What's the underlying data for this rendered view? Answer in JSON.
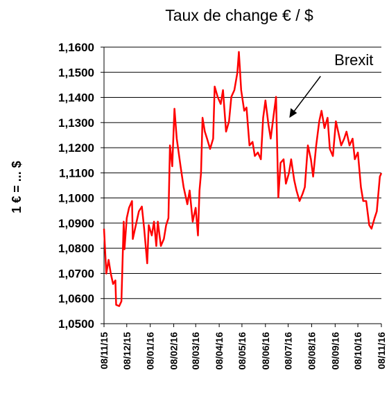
{
  "chart_data": {
    "type": "line",
    "title": "Taux de change € / $",
    "y_label": "1 € = ... $",
    "annotation": "Brexit",
    "annotation_x": "2016-06-24",
    "grid": true,
    "xlim": [
      "2015-11-08",
      "2016-11-08"
    ],
    "ylim": [
      1.05,
      1.16
    ],
    "yticks": [
      {
        "value": 1.05,
        "label": "1,0500"
      },
      {
        "value": 1.06,
        "label": "1,0600"
      },
      {
        "value": 1.07,
        "label": "1,0700"
      },
      {
        "value": 1.08,
        "label": "1,0800"
      },
      {
        "value": 1.09,
        "label": "1,0900"
      },
      {
        "value": 1.1,
        "label": "1,1000"
      },
      {
        "value": 1.11,
        "label": "1,1100"
      },
      {
        "value": 1.12,
        "label": "1,1200"
      },
      {
        "value": 1.13,
        "label": "1,1300"
      },
      {
        "value": 1.14,
        "label": "1,1400"
      },
      {
        "value": 1.15,
        "label": "1,1500"
      },
      {
        "value": 1.16,
        "label": "1,1600"
      }
    ],
    "xticks": [
      {
        "value": "2015-11-08",
        "label": "08/11/15"
      },
      {
        "value": "2015-12-08",
        "label": "08/12/15"
      },
      {
        "value": "2016-01-08",
        "label": "08/01/16"
      },
      {
        "value": "2016-02-08",
        "label": "08/02/16"
      },
      {
        "value": "2016-03-08",
        "label": "08/03/16"
      },
      {
        "value": "2016-04-08",
        "label": "08/04/16"
      },
      {
        "value": "2016-05-08",
        "label": "08/05/16"
      },
      {
        "value": "2016-06-08",
        "label": "08/06/16"
      },
      {
        "value": "2016-07-08",
        "label": "08/07/16"
      },
      {
        "value": "2016-08-08",
        "label": "08/08/16"
      },
      {
        "value": "2016-09-08",
        "label": "08/09/16"
      },
      {
        "value": "2016-10-08",
        "label": "08/10/16"
      },
      {
        "value": "2016-11-08",
        "label": "08/11/16"
      }
    ],
    "x": [
      "2015-11-08",
      "2015-11-11",
      "2015-11-14",
      "2015-11-17",
      "2015-11-20",
      "2015-11-23",
      "2015-11-24",
      "2015-11-28",
      "2015-12-01",
      "2015-12-04",
      "2015-12-05",
      "2015-12-08",
      "2015-12-11",
      "2015-12-15",
      "2015-12-16",
      "2015-12-20",
      "2015-12-24",
      "2015-12-28",
      "2015-12-31",
      "2016-01-04",
      "2016-01-06",
      "2016-01-10",
      "2016-01-13",
      "2016-01-16",
      "2016-01-18",
      "2016-01-22",
      "2016-01-26",
      "2016-01-29",
      "2016-02-01",
      "2016-02-03",
      "2016-02-06",
      "2016-02-09",
      "2016-02-12",
      "2016-02-17",
      "2016-02-21",
      "2016-02-26",
      "2016-02-29",
      "2016-03-04",
      "2016-03-08",
      "2016-03-11",
      "2016-03-13",
      "2016-03-15",
      "2016-03-17",
      "2016-03-20",
      "2016-03-23",
      "2016-03-27",
      "2016-03-31",
      "2016-04-02",
      "2016-04-06",
      "2016-04-10",
      "2016-04-13",
      "2016-04-17",
      "2016-04-21",
      "2016-04-24",
      "2016-04-28",
      "2016-05-02",
      "2016-05-04",
      "2016-05-07",
      "2016-05-11",
      "2016-05-14",
      "2016-05-18",
      "2016-05-22",
      "2016-05-25",
      "2016-05-29",
      "2016-06-02",
      "2016-06-05",
      "2016-06-08",
      "2016-06-12",
      "2016-06-15",
      "2016-06-19",
      "2016-06-22",
      "2016-06-25",
      "2016-06-28",
      "2016-07-02",
      "2016-07-05",
      "2016-07-09",
      "2016-07-12",
      "2016-07-16",
      "2016-07-19",
      "2016-07-23",
      "2016-07-27",
      "2016-07-30",
      "2016-08-03",
      "2016-08-07",
      "2016-08-10",
      "2016-08-14",
      "2016-08-18",
      "2016-08-21",
      "2016-08-25",
      "2016-08-29",
      "2016-09-01",
      "2016-09-05",
      "2016-09-09",
      "2016-09-12",
      "2016-09-16",
      "2016-09-20",
      "2016-09-23",
      "2016-09-27",
      "2016-10-01",
      "2016-10-04",
      "2016-10-08",
      "2016-10-12",
      "2016-10-15",
      "2016-10-19",
      "2016-10-23",
      "2016-10-26",
      "2016-10-30",
      "2016-11-02",
      "2016-11-06",
      "2016-11-08"
    ],
    "series": [
      {
        "name": "€ / $",
        "color": "#ff0000",
        "values": [
          1.0878,
          1.0699,
          1.0754,
          1.0699,
          1.0658,
          1.0672,
          1.0575,
          1.057,
          1.0589,
          1.0906,
          1.0796,
          1.092,
          1.0961,
          1.0988,
          1.0837,
          1.0892,
          1.0947,
          1.0966,
          1.0878,
          1.074,
          1.0892,
          1.0851,
          1.0906,
          1.0809,
          1.0906,
          1.0809,
          1.0837,
          1.0892,
          1.092,
          1.1209,
          1.1126,
          1.1355,
          1.1236,
          1.1126,
          1.1043,
          1.0975,
          1.103,
          1.0906,
          1.0961,
          1.0851,
          1.103,
          1.1099,
          1.1319,
          1.1264,
          1.1236,
          1.1195,
          1.1236,
          1.1443,
          1.1402,
          1.1374,
          1.1429,
          1.1264,
          1.1305,
          1.1402,
          1.1429,
          1.1498,
          1.1581,
          1.1429,
          1.1347,
          1.136,
          1.1209,
          1.1223,
          1.1167,
          1.1181,
          1.1154,
          1.1319,
          1.1388,
          1.1291,
          1.1236,
          1.1333,
          1.1402,
          1.1002,
          1.114,
          1.1154,
          1.1057,
          1.1099,
          1.1154,
          1.1071,
          1.103,
          1.0988,
          1.1016,
          1.1043,
          1.1209,
          1.1154,
          1.1085,
          1.1209,
          1.1305,
          1.1347,
          1.1278,
          1.1319,
          1.1195,
          1.1167,
          1.1305,
          1.1264,
          1.1209,
          1.1236,
          1.1264,
          1.1209,
          1.1236,
          1.1154,
          1.1181,
          1.1043,
          1.0988,
          1.0988,
          1.0892,
          1.0878,
          1.092,
          1.0947,
          1.1085,
          1.1099
        ]
      }
    ]
  }
}
